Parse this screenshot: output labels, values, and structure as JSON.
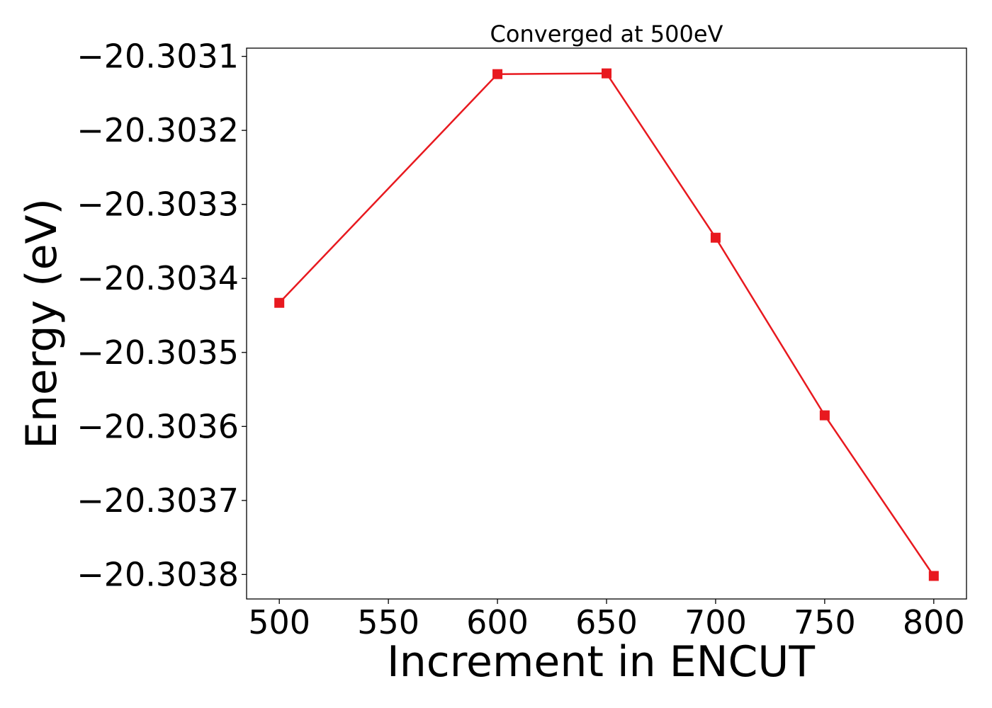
{
  "chart_data": {
    "type": "line",
    "title": "Converged at 500eV",
    "xlabel": "Increment in ENCUT",
    "ylabel": "Energy (eV)",
    "x": [
      500,
      600,
      650,
      700,
      750,
      800
    ],
    "series": [
      {
        "values": [
          -20.303433,
          -20.303124,
          -20.303123,
          -20.303345,
          -20.303585,
          -20.303802
        ],
        "color": "#e8191f",
        "marker": "square"
      }
    ],
    "xticks": [
      500,
      550,
      600,
      650,
      700,
      750,
      800
    ],
    "xtick_labels": [
      "500",
      "550",
      "600",
      "650",
      "700",
      "750",
      "800"
    ],
    "yticks": [
      -20.3031,
      -20.3032,
      -20.3033,
      -20.3034,
      -20.3035,
      -20.3036,
      -20.3037,
      -20.3038
    ],
    "ytick_labels": [
      "−20.3031",
      "−20.3032",
      "−20.3033",
      "−20.3034",
      "−20.3035",
      "−20.3036",
      "−20.3037",
      "−20.3038"
    ],
    "xlim": [
      485,
      815
    ],
    "ylim": [
      -20.3038331,
      -20.3030889
    ],
    "grid": false,
    "legend": "none"
  }
}
